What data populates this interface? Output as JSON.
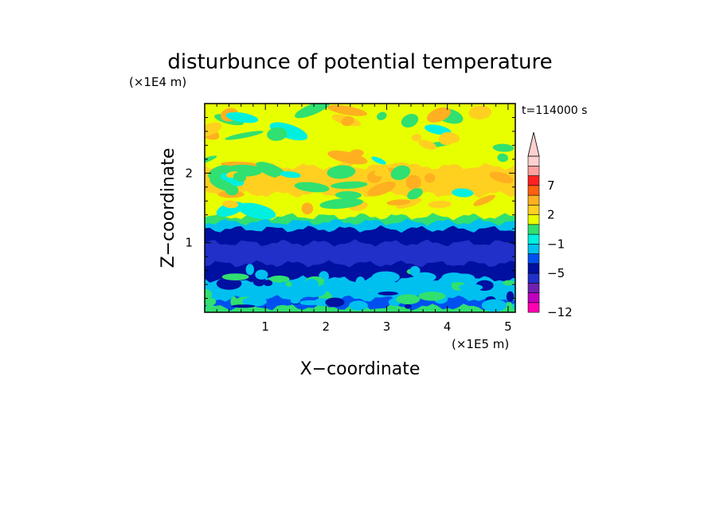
{
  "chart_data": {
    "type": "heatmap",
    "title": "disturbunce of potential temperature",
    "xlabel": "X−coordinate",
    "ylabel": "Z−coordinate",
    "x_unit": "(×1E5 m)",
    "y_unit": "(×1E4 m)",
    "time_label": "t=114000 s",
    "xlim": [
      0,
      5.12
    ],
    "ylim": [
      0,
      3.0
    ],
    "x_ticks": [
      1,
      2,
      3,
      4,
      5
    ],
    "x_tick_labels": [
      "1",
      "2",
      "3",
      "4",
      "5"
    ],
    "y_ticks": [
      1,
      2
    ],
    "y_tick_labels": [
      "1",
      "2"
    ],
    "colorbar": {
      "levels": [
        -12,
        -11,
        -9,
        -7,
        -5,
        -4,
        -3,
        -1,
        0,
        1,
        2,
        3,
        5,
        7,
        9,
        11
      ],
      "labels": [
        {
          "value": -12,
          "text": "−12"
        },
        {
          "value": -5,
          "text": "−5"
        },
        {
          "value": -1,
          "text": "−1"
        },
        {
          "value": 2,
          "text": "2"
        },
        {
          "value": 7,
          "text": "7"
        }
      ],
      "colors": [
        "#ff00b0",
        "#c000c0",
        "#7020b0",
        "#2030c8",
        "#0010a0",
        "#0050f0",
        "#00c0f0",
        "#00f0e0",
        "#30e070",
        "#e8ff00",
        "#ffd020",
        "#ffb020",
        "#ff6010",
        "#ff2020",
        "#ffa0a0",
        "#ffd0d0"
      ],
      "extend_max": true
    },
    "z_bands": [
      {
        "z_from": 0.0,
        "z_to": 0.08,
        "level": 0.5
      },
      {
        "z_from": 0.08,
        "z_to": 0.2,
        "level": -3.5
      },
      {
        "z_from": 0.2,
        "z_to": 0.48,
        "level": -2
      },
      {
        "z_from": 0.48,
        "z_to": 0.7,
        "level": -4.5
      },
      {
        "z_from": 0.7,
        "z_to": 1.0,
        "level": -5.5
      },
      {
        "z_from": 1.0,
        "z_to": 1.2,
        "level": -4.5
      },
      {
        "z_from": 1.2,
        "z_to": 1.3,
        "level": -2
      },
      {
        "z_from": 1.3,
        "z_to": 1.38,
        "level": 0.5
      },
      {
        "z_from": 1.38,
        "z_to": 1.7,
        "level": 1.5
      },
      {
        "z_from": 1.7,
        "z_to": 2.1,
        "level": 2.5
      },
      {
        "z_from": 2.1,
        "z_to": 2.5,
        "level": 1.5
      },
      {
        "z_from": 2.5,
        "z_to": 3.0,
        "level": 1.2
      }
    ]
  }
}
